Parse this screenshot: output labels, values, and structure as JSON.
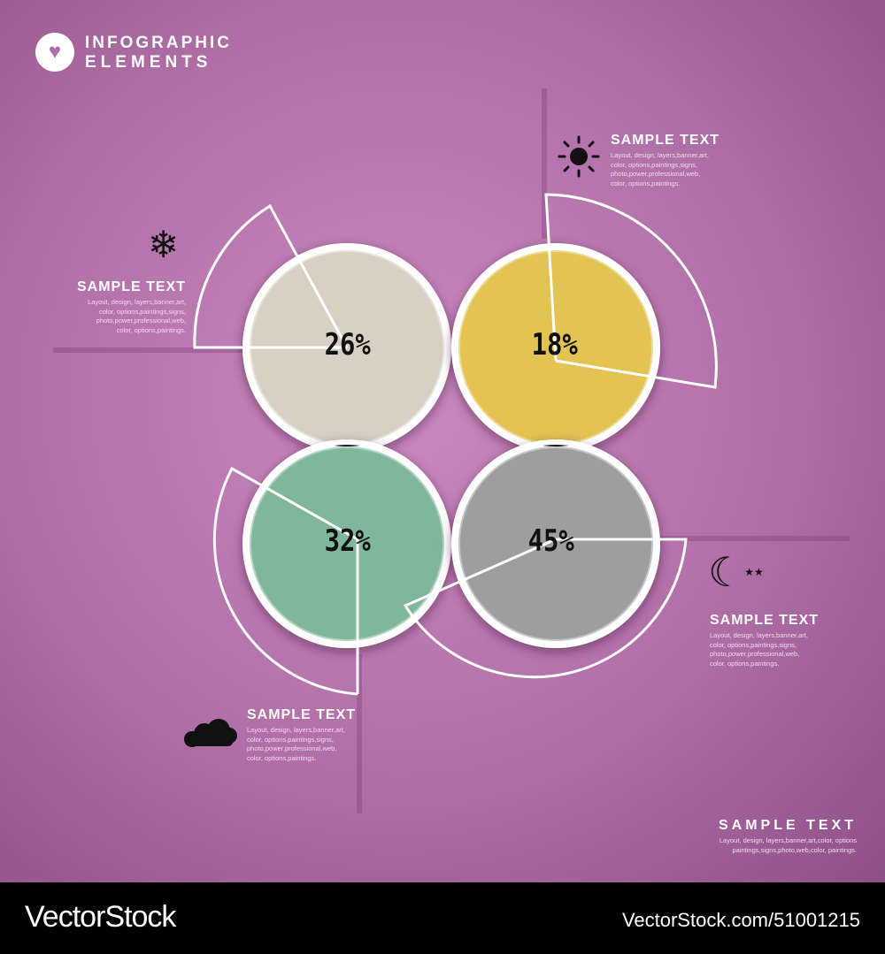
{
  "header": {
    "logo_icon": "heart-icon",
    "title_line1": "INFOGRAPHIC",
    "title_line2": "ELEMENTS"
  },
  "items": [
    {
      "percent": "26%",
      "value": 26,
      "color": "#d9d0c4",
      "icon": "snowflake-icon",
      "title": "SAMPLE TEXT",
      "desc": [
        "Layout, design, layers,banner,art,",
        "color, options,paintings,signs,",
        "photo,power,professional,web,",
        "color, options,paintings."
      ]
    },
    {
      "percent": "18%",
      "value": 18,
      "color": "#e3c352",
      "icon": "sun-icon",
      "title": "SAMPLE TEXT",
      "desc": [
        "Layout, design, layers,banner,art,",
        "color, options,paintings,signs,",
        "photo,power,professional,web,",
        "color, options,paintings."
      ]
    },
    {
      "percent": "32%",
      "value": 32,
      "color": "#7fb79a",
      "icon": "cloud-icon",
      "title": "SAMPLE TEXT",
      "desc": [
        "Layout, design, layers,banner,art,",
        "color, options,paintings,signs,",
        "photo,power,professional,web,",
        "color, options,paintings."
      ]
    },
    {
      "percent": "45%",
      "value": 45,
      "color": "#9e9e9e",
      "icon": "moon-stars-icon",
      "title": "SAMPLE TEXT",
      "desc": [
        "Layout, design, layers,banner,art,",
        "color, options,paintings,signs,",
        "photo,power,professional,web,",
        "color, options,paintings."
      ]
    }
  ],
  "bottom": {
    "title": "SAMPLE TEXT",
    "desc": [
      "Layout, design, layers,banner,art,color, options",
      "paintings,signs,photo,web,color, paintings."
    ]
  },
  "footer": {
    "brand": "VectorStock",
    "id": "VectorStock.com/51001215"
  },
  "colors": {
    "background": "#b06fa7",
    "overlap": "#1e1a1e",
    "ring": "#ffffff"
  }
}
